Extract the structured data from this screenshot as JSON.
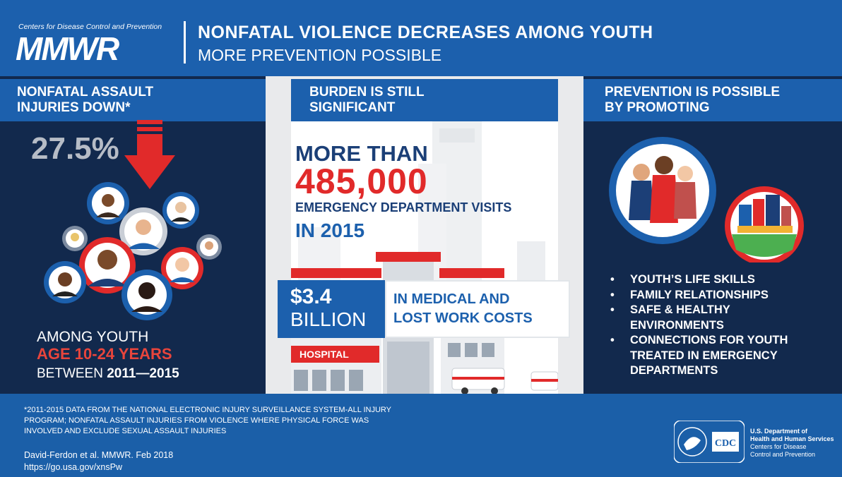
{
  "header": {
    "org": "Centers for Disease Control and Prevention",
    "brand": "MMWR",
    "title": "NONFATAL VIOLENCE DECREASES AMONG YOUTH",
    "subtitle": "MORE PREVENTION POSSIBLE"
  },
  "left": {
    "heading_line1": "NONFATAL ASSAULT",
    "heading_line2": "INJURIES DOWN*",
    "percent": "27.5%",
    "line1": "AMONG YOUTH",
    "line2": "AGE 10-24 YEARS",
    "line3_prefix": "BETWEEN ",
    "line3_years": "2011—2015"
  },
  "middle": {
    "heading_line1": "BURDEN IS STILL",
    "heading_line2": "SIGNIFICANT",
    "more_than": "MORE THAN",
    "visits": "485,000",
    "visits_label": "EMERGENCY DEPARTMENT VISITS",
    "year": "IN 2015",
    "cost_amount": "$3.4",
    "cost_unit": "BILLION",
    "cost_label_line1": "IN MEDICAL AND",
    "cost_label_line2": "LOST WORK COSTS",
    "hospital_sign": "HOSPITAL"
  },
  "right": {
    "heading_line1": "PREVENTION IS POSSIBLE",
    "heading_line2": "BY PROMOTING",
    "bullets": [
      "YOUTH’S LIFE SKILLS",
      "FAMILY RELATIONSHIPS",
      "SAFE & HEALTHY ENVIRONMENTS",
      "CONNECTIONS FOR YOUTH TREATED IN EMERGENCY DEPARTMENTS"
    ]
  },
  "footer": {
    "note": "*2011-2015 DATA FROM THE NATIONAL ELECTRONIC INJURY SURVEILLANCE SYSTEM-ALL INJURY PROGRAM; NONFATAL ASSAULT INJURIES FROM VIOLENCE WHERE PHYSICAL FORCE WAS INVOLVED AND EXCLUDE SEXUAL ASSAULT INJURIES",
    "citation": "David-Ferdon et al. MMWR. Feb 2018",
    "url": "https://go.usa.gov/xnsPw",
    "hhs_line1": "U.S. Department of",
    "hhs_line2": "Health and Human Services",
    "hhs_line3": "Centers for Disease",
    "hhs_line4": "Control and Prevention",
    "cdc_logo": "CDC"
  },
  "colors": {
    "primary_blue": "#1c60ad",
    "navy": "#12294d",
    "accent_red": "#e12a2a"
  }
}
